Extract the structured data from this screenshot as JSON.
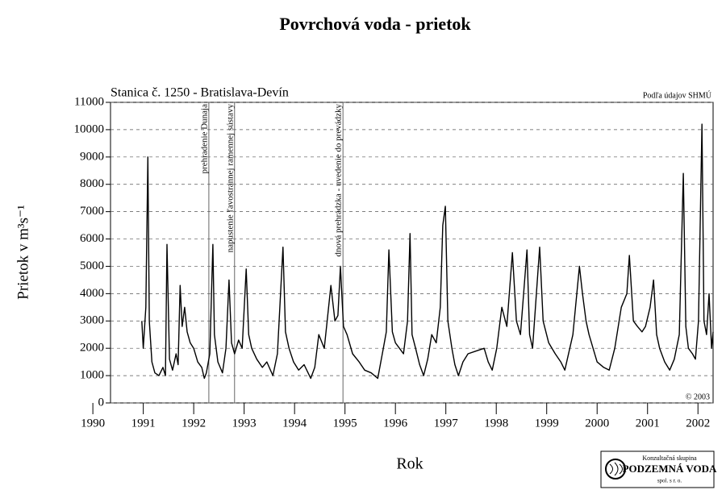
{
  "chart_data": {
    "type": "line",
    "title": "Povrchová voda - prietok",
    "subtitle": "Stanica č. 1250 - Bratislava-Devín",
    "source": "Podľa údajov SHMÚ",
    "copyright": "© 2003",
    "xlabel": "Rok",
    "ylabel": "Prietok v m³s⁻¹",
    "logo": {
      "line1": "Konzultačná skupina",
      "line2": "PODZEMNÁ VODA",
      "line3": "spol. s r. o."
    },
    "xlim": [
      1990.35,
      2002.3
    ],
    "ylim": [
      0,
      11000
    ],
    "xticks": [
      1990,
      1991,
      1992,
      1993,
      1994,
      1995,
      1996,
      1997,
      1998,
      1999,
      2000,
      2001,
      2002
    ],
    "yticks": [
      0,
      1000,
      2000,
      3000,
      4000,
      5000,
      6000,
      7000,
      8000,
      9000,
      10000,
      11000
    ],
    "grid": true,
    "annotations": [
      {
        "x": 1992.3,
        "text": "prehradenie Dunaja"
      },
      {
        "x": 1992.81,
        "text": "napustenie ľavostrannej ramennej sústavy"
      },
      {
        "x": 1994.96,
        "text": "dnová prehrádzka - uvedenie do prevádzky"
      }
    ],
    "series": [
      {
        "color": "#000000",
        "x": [
          1990.97,
          1991.0,
          1991.05,
          1991.09,
          1991.12,
          1991.17,
          1991.23,
          1991.31,
          1991.39,
          1991.44,
          1991.47,
          1991.52,
          1991.58,
          1991.65,
          1991.69,
          1991.73,
          1991.77,
          1991.82,
          1991.87,
          1991.93,
          1992.0,
          1992.08,
          1992.16,
          1992.21,
          1992.25,
          1992.32,
          1992.38,
          1992.41,
          1992.48,
          1992.57,
          1992.64,
          1992.7,
          1992.75,
          1992.81,
          1992.89,
          1992.96,
          1993.04,
          1993.09,
          1993.15,
          1993.25,
          1993.36,
          1993.45,
          1993.57,
          1993.66,
          1993.77,
          1993.82,
          1993.89,
          1993.98,
          1994.08,
          1994.19,
          1994.32,
          1994.4,
          1994.48,
          1994.59,
          1994.72,
          1994.8,
          1994.86,
          1994.91,
          1994.97,
          1995.04,
          1995.15,
          1995.28,
          1995.39,
          1995.52,
          1995.65,
          1995.76,
          1995.82,
          1995.87,
          1995.94,
          1996.0,
          1996.08,
          1996.16,
          1996.24,
          1996.29,
          1996.33,
          1996.4,
          1996.48,
          1996.56,
          1996.64,
          1996.72,
          1996.81,
          1996.89,
          1996.94,
          1996.99,
          1997.04,
          1997.12,
          1997.18,
          1997.25,
          1997.34,
          1997.44,
          1997.6,
          1997.76,
          1997.84,
          1997.92,
          1998.01,
          1998.11,
          1998.21,
          1998.32,
          1998.4,
          1998.48,
          1998.61,
          1998.66,
          1998.72,
          1998.86,
          1998.93,
          1999.04,
          1999.17,
          1999.28,
          1999.36,
          1999.52,
          1999.65,
          1999.71,
          1999.78,
          1999.84,
          1999.92,
          2000.0,
          2000.13,
          2000.24,
          2000.35,
          2000.48,
          2000.59,
          2000.64,
          2000.72,
          2000.8,
          2000.89,
          2000.96,
          2001.05,
          2001.12,
          2001.18,
          2001.24,
          2001.34,
          2001.44,
          2001.53,
          2001.63,
          2001.71,
          2001.76,
          2001.81,
          2001.89,
          2001.95,
          2002.01,
          2002.08,
          2002.12,
          2002.17,
          2002.22,
          2002.27,
          2002.3
        ],
        "values": [
          3000,
          2000,
          3500,
          9000,
          3000,
          1500,
          1100,
          1000,
          1300,
          1000,
          5800,
          1600,
          1200,
          1800,
          1400,
          4300,
          2800,
          3500,
          2600,
          2200,
          2000,
          1500,
          1300,
          900,
          1100,
          1800,
          5800,
          2500,
          1500,
          1100,
          2000,
          4500,
          2200,
          1800,
          2300,
          2000,
          4900,
          2500,
          2000,
          1600,
          1300,
          1500,
          1000,
          1800,
          5700,
          2600,
          2000,
          1500,
          1200,
          1400,
          900,
          1300,
          2500,
          2000,
          4300,
          3000,
          3200,
          5000,
          2800,
          2500,
          1800,
          1500,
          1200,
          1100,
          900,
          2000,
          2600,
          5600,
          2600,
          2200,
          2000,
          1800,
          3000,
          6200,
          2500,
          2000,
          1400,
          1000,
          1600,
          2500,
          2200,
          3500,
          6500,
          7200,
          3000,
          2000,
          1400,
          1000,
          1500,
          1800,
          1900,
          2000,
          1500,
          1200,
          2000,
          3500,
          2800,
          5500,
          3000,
          2500,
          5600,
          2500,
          2000,
          5700,
          3000,
          2200,
          1800,
          1500,
          1200,
          2500,
          5000,
          4000,
          3000,
          2500,
          2000,
          1500,
          1300,
          1200,
          2000,
          3500,
          4000,
          5400,
          3000,
          2800,
          2600,
          2800,
          3500,
          4500,
          2500,
          2000,
          1500,
          1200,
          1600,
          2500,
          8400,
          2800,
          2000,
          1800,
          1600,
          3000,
          10200,
          3000,
          2500,
          4000,
          2000,
          2600
        ]
      }
    ]
  }
}
